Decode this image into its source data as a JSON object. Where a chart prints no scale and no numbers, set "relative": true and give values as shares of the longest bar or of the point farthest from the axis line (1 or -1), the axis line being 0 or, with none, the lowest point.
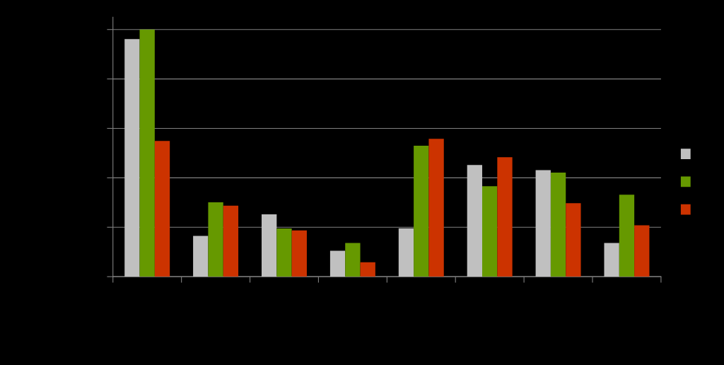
{
  "chart_data": {
    "type": "bar",
    "relative": true,
    "grid": "y",
    "categories": [
      null,
      null,
      null,
      null,
      null,
      null,
      null,
      null
    ],
    "series": [
      {
        "color": "#c0c0c0",
        "values": [
          0.961,
          0.165,
          0.252,
          0.105,
          0.196,
          0.452,
          0.431,
          0.136
        ]
      },
      {
        "color": "#669900",
        "values": [
          1,
          0.301,
          0.195,
          0.136,
          0.53,
          0.366,
          0.421,
          0.332
        ]
      },
      {
        "color": "#cc3300",
        "values": [
          0.549,
          0.287,
          0.187,
          0.058,
          0.558,
          0.483,
          0.297,
          0.208
        ]
      }
    ]
  }
}
